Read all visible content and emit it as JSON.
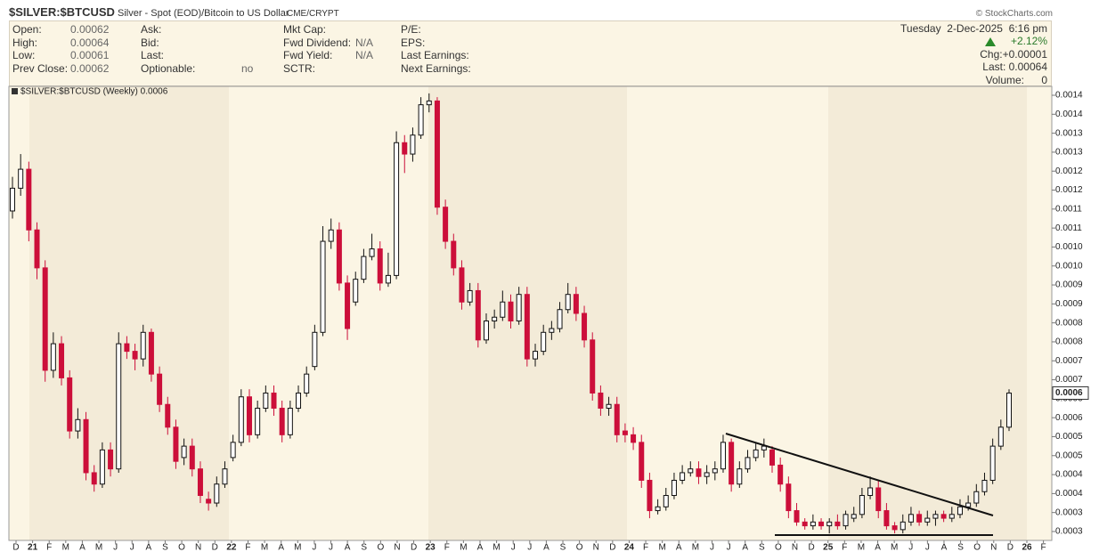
{
  "header": {
    "symbol": "$SILVER:$BTCUSD",
    "description": "Silver - Spot (EOD)/Bitcoin to US Dollar",
    "exchange": "CME/CRYPT",
    "credit": "© StockCharts.com"
  },
  "info": {
    "col1": [
      [
        "Open:",
        0.00062
      ],
      [
        "High:",
        0.00064
      ],
      [
        "Low:",
        0.00061
      ],
      [
        "Prev Close:",
        0.00062
      ]
    ],
    "col2": [
      [
        "Ask:"
      ],
      [
        "Bid:"
      ],
      [
        "Last:"
      ],
      [
        "Optionable:",
        "no"
      ]
    ],
    "col3": [
      [
        "Mkt Cap:"
      ],
      [
        "Fwd Dividend:",
        "N/A"
      ],
      [
        "Fwd Yield:",
        "N/A"
      ],
      [
        "SCTR:"
      ]
    ],
    "col4": [
      [
        "P/E:"
      ],
      [
        "EPS:"
      ],
      [
        "Last Earnings:"
      ],
      [
        "Next Earnings:"
      ]
    ],
    "date": "Tuesday  2-Dec-2025  6:16 pm",
    "change_pct": "+2.12%",
    "chg": "Chg:+0.00001",
    "last": "Last: 0.00064",
    "volume_label": "Volume:",
    "volume": 0
  },
  "chart_data": {
    "type": "candlestick",
    "legend": "$SILVER:$BTCUSD (Weekly) 0.0006",
    "up_color": "#ffffff",
    "down_color": "#cc0f3a",
    "ylim": [
      0.0002515,
      0.0014485
    ],
    "yticks": [
      {
        "value": 0.000275,
        "label": "0.0003"
      },
      {
        "value": 0.000325,
        "label": "0.0003"
      },
      {
        "value": 0.000375,
        "label": "0.0004"
      },
      {
        "value": 0.000425,
        "label": "0.0004"
      },
      {
        "value": 0.000475,
        "label": "0.0005"
      },
      {
        "value": 0.000525,
        "label": "0.0005"
      },
      {
        "value": 0.000575,
        "label": "0.0006"
      },
      {
        "value": 0.000625,
        "label": "0.0006"
      },
      {
        "value": 0.000675,
        "label": "0.0007"
      },
      {
        "value": 0.000725,
        "label": "0.0007"
      },
      {
        "value": 0.000775,
        "label": "0.0008"
      },
      {
        "value": 0.000825,
        "label": "0.0008"
      },
      {
        "value": 0.000875,
        "label": "0.0009"
      },
      {
        "value": 0.000925,
        "label": "0.0009"
      },
      {
        "value": 0.000975,
        "label": "0.0010"
      },
      {
        "value": 0.001025,
        "label": "0.0010"
      },
      {
        "value": 0.001075,
        "label": "0.0011"
      },
      {
        "value": 0.001125,
        "label": "0.0011"
      },
      {
        "value": 0.001175,
        "label": "0.0012"
      },
      {
        "value": 0.001225,
        "label": "0.0012"
      },
      {
        "value": 0.001275,
        "label": "0.0013"
      },
      {
        "value": 0.001325,
        "label": "0.0013"
      },
      {
        "value": 0.001375,
        "label": "0.0014"
      },
      {
        "value": 0.001425,
        "label": "0.0014"
      }
    ],
    "last_value": {
      "value": 0.00064,
      "label": "0.0006"
    },
    "months": [
      "D",
      "21",
      "F",
      "M",
      "A",
      "M",
      "J",
      "J",
      "A",
      "S",
      "O",
      "N",
      "D",
      "22",
      "F",
      "M",
      "A",
      "M",
      "J",
      "J",
      "A",
      "S",
      "O",
      "N",
      "D",
      "23",
      "F",
      "M",
      "A",
      "M",
      "J",
      "J",
      "A",
      "S",
      "O",
      "N",
      "D",
      "24",
      "F",
      "M",
      "A",
      "M",
      "J",
      "J",
      "A",
      "S",
      "O",
      "N",
      "D",
      "25",
      "F",
      "M",
      "A",
      "M",
      "J",
      "J",
      "A",
      "S",
      "O",
      "N",
      "D",
      "26",
      "F"
    ],
    "ohlc": [
      [
        0.00112,
        0.00121,
        0.0011,
        0.00118
      ],
      [
        0.00118,
        0.00127,
        0.00116,
        0.00123
      ],
      [
        0.00123,
        0.00125,
        0.00104,
        0.00107
      ],
      [
        0.00107,
        0.00109,
        0.00094,
        0.00097
      ],
      [
        0.00097,
        0.00099,
        0.00067,
        0.0007
      ],
      [
        0.0007,
        0.0008,
        0.00068,
        0.00077
      ],
      [
        0.00077,
        0.00079,
        0.00066,
        0.00068
      ],
      [
        0.00068,
        0.0007,
        0.00052,
        0.00054
      ],
      [
        0.00054,
        0.0006,
        0.00052,
        0.00057
      ],
      [
        0.00057,
        0.00059,
        0.00041,
        0.00043
      ],
      [
        0.00043,
        0.00045,
        0.00038,
        0.0004
      ],
      [
        0.0004,
        0.00051,
        0.00039,
        0.00049
      ],
      [
        0.00049,
        0.00051,
        0.00042,
        0.00044
      ],
      [
        0.00044,
        0.0008,
        0.00043,
        0.00077
      ],
      [
        0.00077,
        0.00079,
        0.00073,
        0.00075
      ],
      [
        0.00075,
        0.00077,
        0.0007,
        0.00073
      ],
      [
        0.00073,
        0.00082,
        0.00071,
        0.0008
      ],
      [
        0.0008,
        0.00081,
        0.00067,
        0.00069
      ],
      [
        0.00069,
        0.00071,
        0.00059,
        0.00061
      ],
      [
        0.00061,
        0.00063,
        0.00053,
        0.00055
      ],
      [
        0.00055,
        0.00057,
        0.00044,
        0.00046
      ],
      [
        0.00047,
        0.00052,
        0.00045,
        0.0005
      ],
      [
        0.0005,
        0.00052,
        0.00042,
        0.00044
      ],
      [
        0.00044,
        0.00046,
        0.00035,
        0.00037
      ],
      [
        0.00036,
        0.00038,
        0.00033,
        0.00035
      ],
      [
        0.00035,
        0.00042,
        0.00034,
        0.0004
      ],
      [
        0.0004,
        0.00046,
        0.00039,
        0.00044
      ],
      [
        0.00047,
        0.00053,
        0.00046,
        0.00051
      ],
      [
        0.00051,
        0.00065,
        0.0005,
        0.00063
      ],
      [
        0.00063,
        0.00065,
        0.00051,
        0.00053
      ],
      [
        0.00053,
        0.00062,
        0.00052,
        0.0006
      ],
      [
        0.0006,
        0.00066,
        0.00059,
        0.00064
      ],
      [
        0.00064,
        0.00066,
        0.00058,
        0.0006
      ],
      [
        0.0006,
        0.00062,
        0.00051,
        0.00053
      ],
      [
        0.00053,
        0.00062,
        0.00052,
        0.0006
      ],
      [
        0.0006,
        0.00066,
        0.00059,
        0.00064
      ],
      [
        0.00064,
        0.00071,
        0.00063,
        0.00069
      ],
      [
        0.00071,
        0.00082,
        0.0007,
        0.0008
      ],
      [
        0.0008,
        0.00108,
        0.00079,
        0.00104
      ],
      [
        0.00104,
        0.0011,
        0.00102,
        0.00107
      ],
      [
        0.00107,
        0.00109,
        0.00091,
        0.00093
      ],
      [
        0.00093,
        0.00095,
        0.00078,
        0.00081
      ],
      [
        0.00088,
        0.00096,
        0.00087,
        0.00094
      ],
      [
        0.00094,
        0.00102,
        0.00093,
        0.001
      ],
      [
        0.001,
        0.00106,
        0.00099,
        0.00102
      ],
      [
        0.00102,
        0.00104,
        0.00091,
        0.00093
      ],
      [
        0.00093,
        0.00101,
        0.00092,
        0.00095
      ],
      [
        0.00095,
        0.00133,
        0.00094,
        0.0013
      ],
      [
        0.0013,
        0.00132,
        0.00122,
        0.00127
      ],
      [
        0.00127,
        0.00134,
        0.00125,
        0.00132
      ],
      [
        0.00132,
        0.00142,
        0.00131,
        0.0014
      ],
      [
        0.0014,
        0.00143,
        0.00138,
        0.00141
      ],
      [
        0.00141,
        0.00142,
        0.00111,
        0.00113
      ],
      [
        0.00113,
        0.00115,
        0.00102,
        0.00104
      ],
      [
        0.00104,
        0.00106,
        0.00095,
        0.00097
      ],
      [
        0.00097,
        0.00099,
        0.00086,
        0.00088
      ],
      [
        0.00088,
        0.00093,
        0.00087,
        0.00091
      ],
      [
        0.00091,
        0.00093,
        0.00076,
        0.00078
      ],
      [
        0.00078,
        0.00085,
        0.00077,
        0.00083
      ],
      [
        0.00083,
        0.00086,
        0.00081,
        0.00084
      ],
      [
        0.00084,
        0.00091,
        0.00083,
        0.00088
      ],
      [
        0.00088,
        0.0009,
        0.00081,
        0.00083
      ],
      [
        0.00083,
        0.00092,
        0.00082,
        0.0009
      ],
      [
        0.0009,
        0.00092,
        0.00071,
        0.00073
      ],
      [
        0.00073,
        0.00077,
        0.00071,
        0.00075
      ],
      [
        0.00075,
        0.00082,
        0.00074,
        0.0008
      ],
      [
        0.0008,
        0.00083,
        0.00078,
        0.00081
      ],
      [
        0.00081,
        0.00088,
        0.0008,
        0.00086
      ],
      [
        0.00086,
        0.00093,
        0.00085,
        0.0009
      ],
      [
        0.0009,
        0.00092,
        0.00083,
        0.00085
      ],
      [
        0.00085,
        0.00087,
        0.00076,
        0.00078
      ],
      [
        0.00078,
        0.0008,
        0.00062,
        0.00064
      ],
      [
        0.00064,
        0.00066,
        0.00058,
        0.0006
      ],
      [
        0.0006,
        0.00063,
        0.00058,
        0.00061
      ],
      [
        0.00061,
        0.00063,
        0.00051,
        0.00053
      ],
      [
        0.00054,
        0.00056,
        0.00051,
        0.00053
      ],
      [
        0.00053,
        0.00055,
        0.00049,
        0.00051
      ],
      [
        0.00051,
        0.00053,
        0.00039,
        0.00041
      ],
      [
        0.00041,
        0.00043,
        0.00031,
        0.00033
      ],
      [
        0.00033,
        0.00036,
        0.00032,
        0.00034
      ],
      [
        0.00034,
        0.00039,
        0.00033,
        0.00037
      ],
      [
        0.00037,
        0.00043,
        0.00036,
        0.00041
      ],
      [
        0.00041,
        0.00045,
        0.0004,
        0.00043
      ],
      [
        0.00043,
        0.00046,
        0.00042,
        0.00044
      ],
      [
        0.00044,
        0.00046,
        0.0004,
        0.00042
      ],
      [
        0.00042,
        0.00045,
        0.0004,
        0.00043
      ],
      [
        0.00043,
        0.00046,
        0.00041,
        0.00044
      ],
      [
        0.00044,
        0.00053,
        0.00043,
        0.00051
      ],
      [
        0.00051,
        0.00052,
        0.00038,
        0.0004
      ],
      [
        0.0004,
        0.00046,
        0.00039,
        0.00044
      ],
      [
        0.00044,
        0.00049,
        0.00043,
        0.00047
      ],
      [
        0.00047,
        0.00051,
        0.00046,
        0.00049
      ],
      [
        0.00049,
        0.00052,
        0.00047,
        0.0005
      ],
      [
        0.00049,
        0.0005,
        0.00043,
        0.00045
      ],
      [
        0.00045,
        0.00047,
        0.00038,
        0.0004
      ],
      [
        0.0004,
        0.00042,
        0.00031,
        0.00033
      ],
      [
        0.00033,
        0.00035,
        0.00029,
        0.0003
      ],
      [
        0.0003,
        0.00031,
        0.00028,
        0.00029
      ],
      [
        0.00029,
        0.00032,
        0.00028,
        0.0003
      ],
      [
        0.0003,
        0.00031,
        0.00028,
        0.00029
      ],
      [
        0.00029,
        0.00031,
        0.00027,
        0.0003
      ],
      [
        0.0003,
        0.00032,
        0.00028,
        0.00029
      ],
      [
        0.00029,
        0.00033,
        0.00028,
        0.00032
      ],
      [
        0.00031,
        0.00034,
        0.0003,
        0.00032
      ],
      [
        0.00032,
        0.00039,
        0.00031,
        0.00037
      ],
      [
        0.00037,
        0.00042,
        0.00036,
        0.00039
      ],
      [
        0.00039,
        0.00041,
        0.00031,
        0.00033
      ],
      [
        0.00033,
        0.00035,
        0.00028,
        0.00029
      ],
      [
        0.00029,
        0.0003,
        0.00027,
        0.00028
      ],
      [
        0.00028,
        0.00032,
        0.00027,
        0.0003
      ],
      [
        0.0003,
        0.00034,
        0.00029,
        0.00032
      ],
      [
        0.00032,
        0.00033,
        0.00029,
        0.0003
      ],
      [
        0.0003,
        0.00033,
        0.00029,
        0.00031
      ],
      [
        0.00031,
        0.00033,
        0.00029,
        0.00032
      ],
      [
        0.00032,
        0.00033,
        0.0003,
        0.00031
      ],
      [
        0.00031,
        0.00034,
        0.0003,
        0.00032
      ],
      [
        0.00032,
        0.00036,
        0.00031,
        0.00034
      ],
      [
        0.00034,
        0.00037,
        0.00033,
        0.00035
      ],
      [
        0.00035,
        0.0004,
        0.00034,
        0.00038
      ],
      [
        0.00038,
        0.00043,
        0.00037,
        0.00041
      ],
      [
        0.00041,
        0.00052,
        0.0004,
        0.0005
      ],
      [
        0.0005,
        0.00057,
        0.00049,
        0.00055
      ],
      [
        0.00055,
        0.00065,
        0.00054,
        0.00064
      ]
    ]
  }
}
